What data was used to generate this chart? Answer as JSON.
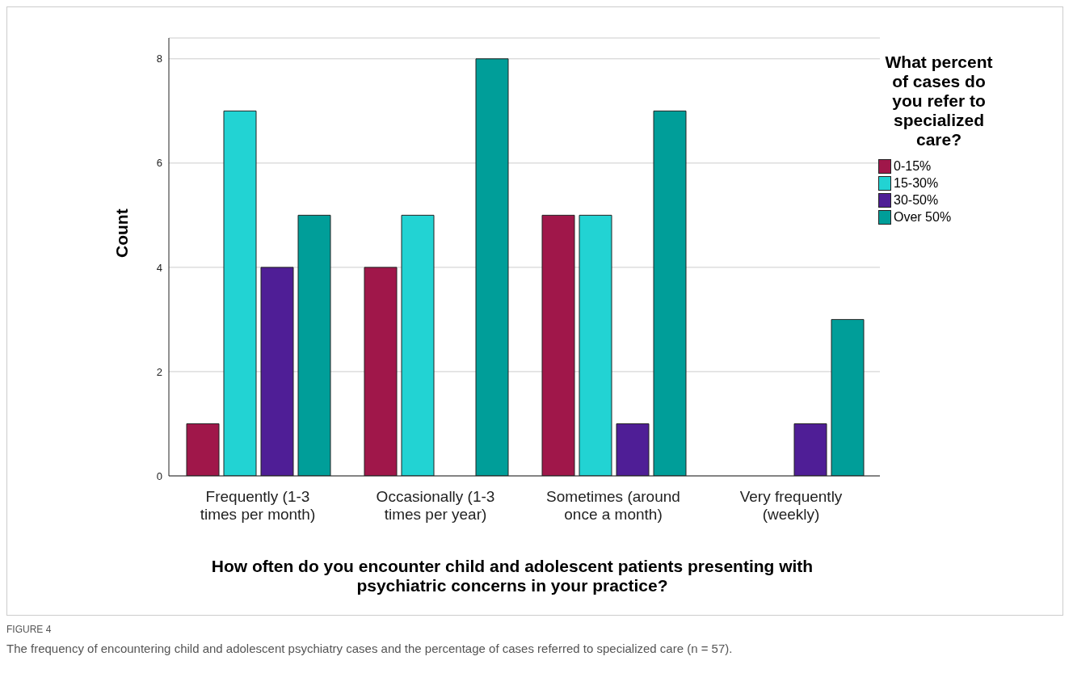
{
  "chart_data": {
    "type": "bar",
    "xlabel": "How often do you encounter child and adolescent patients presenting with psychiatric concerns in your practice?",
    "ylabel": "Count",
    "legend_title": "What percent of cases do you refer to specialized care?",
    "categories": [
      "Frequently (1-3 times per month)",
      "Occasionally (1-3 times per year)",
      "Sometimes (around once a month)",
      "Very frequently (weekly)"
    ],
    "series": [
      {
        "name": "0-15%",
        "color": "#a0174a",
        "values": [
          1,
          4,
          5,
          0
        ]
      },
      {
        "name": "15-30%",
        "color": "#22d3d3",
        "values": [
          7,
          5,
          5,
          0
        ]
      },
      {
        "name": "30-50%",
        "color": "#4f1e96",
        "values": [
          4,
          0,
          1,
          1
        ]
      },
      {
        "name": "Over 50%",
        "color": "#009e99",
        "values": [
          5,
          8,
          7,
          3
        ]
      }
    ],
    "ylim": [
      0,
      8.4
    ],
    "yticks": [
      0,
      2,
      4,
      6,
      8
    ],
    "grid": "y",
    "legend": "right",
    "annotations": [
      "FIGURE 4",
      "The frequency of encountering child and adolescent psychiatry cases and the percentage of cases referred to specialized care (n = 57)."
    ]
  }
}
